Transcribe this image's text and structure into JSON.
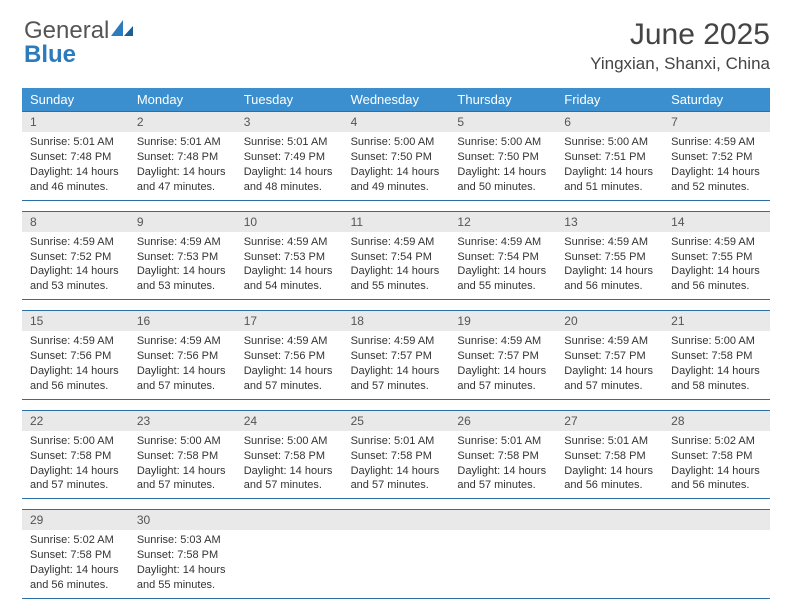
{
  "logo": {
    "text_general": "General",
    "text_blue": "Blue"
  },
  "title": "June 2025",
  "location": "Yingxian, Shanxi, China",
  "colors": {
    "header_bg": "#3b8fce",
    "header_text": "#ffffff",
    "daynum_bg": "#e9e9e9",
    "week_border": "#2b6fa5",
    "logo_blue": "#2b7bbd",
    "body_text": "#333333",
    "page_bg": "#ffffff"
  },
  "day_names": [
    "Sunday",
    "Monday",
    "Tuesday",
    "Wednesday",
    "Thursday",
    "Friday",
    "Saturday"
  ],
  "weeks": [
    [
      {
        "n": "1",
        "sr": "Sunrise: 5:01 AM",
        "ss": "Sunset: 7:48 PM",
        "dl": "Daylight: 14 hours and 46 minutes."
      },
      {
        "n": "2",
        "sr": "Sunrise: 5:01 AM",
        "ss": "Sunset: 7:48 PM",
        "dl": "Daylight: 14 hours and 47 minutes."
      },
      {
        "n": "3",
        "sr": "Sunrise: 5:01 AM",
        "ss": "Sunset: 7:49 PM",
        "dl": "Daylight: 14 hours and 48 minutes."
      },
      {
        "n": "4",
        "sr": "Sunrise: 5:00 AM",
        "ss": "Sunset: 7:50 PM",
        "dl": "Daylight: 14 hours and 49 minutes."
      },
      {
        "n": "5",
        "sr": "Sunrise: 5:00 AM",
        "ss": "Sunset: 7:50 PM",
        "dl": "Daylight: 14 hours and 50 minutes."
      },
      {
        "n": "6",
        "sr": "Sunrise: 5:00 AM",
        "ss": "Sunset: 7:51 PM",
        "dl": "Daylight: 14 hours and 51 minutes."
      },
      {
        "n": "7",
        "sr": "Sunrise: 4:59 AM",
        "ss": "Sunset: 7:52 PM",
        "dl": "Daylight: 14 hours and 52 minutes."
      }
    ],
    [
      {
        "n": "8",
        "sr": "Sunrise: 4:59 AM",
        "ss": "Sunset: 7:52 PM",
        "dl": "Daylight: 14 hours and 53 minutes."
      },
      {
        "n": "9",
        "sr": "Sunrise: 4:59 AM",
        "ss": "Sunset: 7:53 PM",
        "dl": "Daylight: 14 hours and 53 minutes."
      },
      {
        "n": "10",
        "sr": "Sunrise: 4:59 AM",
        "ss": "Sunset: 7:53 PM",
        "dl": "Daylight: 14 hours and 54 minutes."
      },
      {
        "n": "11",
        "sr": "Sunrise: 4:59 AM",
        "ss": "Sunset: 7:54 PM",
        "dl": "Daylight: 14 hours and 55 minutes."
      },
      {
        "n": "12",
        "sr": "Sunrise: 4:59 AM",
        "ss": "Sunset: 7:54 PM",
        "dl": "Daylight: 14 hours and 55 minutes."
      },
      {
        "n": "13",
        "sr": "Sunrise: 4:59 AM",
        "ss": "Sunset: 7:55 PM",
        "dl": "Daylight: 14 hours and 56 minutes."
      },
      {
        "n": "14",
        "sr": "Sunrise: 4:59 AM",
        "ss": "Sunset: 7:55 PM",
        "dl": "Daylight: 14 hours and 56 minutes."
      }
    ],
    [
      {
        "n": "15",
        "sr": "Sunrise: 4:59 AM",
        "ss": "Sunset: 7:56 PM",
        "dl": "Daylight: 14 hours and 56 minutes."
      },
      {
        "n": "16",
        "sr": "Sunrise: 4:59 AM",
        "ss": "Sunset: 7:56 PM",
        "dl": "Daylight: 14 hours and 57 minutes."
      },
      {
        "n": "17",
        "sr": "Sunrise: 4:59 AM",
        "ss": "Sunset: 7:56 PM",
        "dl": "Daylight: 14 hours and 57 minutes."
      },
      {
        "n": "18",
        "sr": "Sunrise: 4:59 AM",
        "ss": "Sunset: 7:57 PM",
        "dl": "Daylight: 14 hours and 57 minutes."
      },
      {
        "n": "19",
        "sr": "Sunrise: 4:59 AM",
        "ss": "Sunset: 7:57 PM",
        "dl": "Daylight: 14 hours and 57 minutes."
      },
      {
        "n": "20",
        "sr": "Sunrise: 4:59 AM",
        "ss": "Sunset: 7:57 PM",
        "dl": "Daylight: 14 hours and 57 minutes."
      },
      {
        "n": "21",
        "sr": "Sunrise: 5:00 AM",
        "ss": "Sunset: 7:58 PM",
        "dl": "Daylight: 14 hours and 58 minutes."
      }
    ],
    [
      {
        "n": "22",
        "sr": "Sunrise: 5:00 AM",
        "ss": "Sunset: 7:58 PM",
        "dl": "Daylight: 14 hours and 57 minutes."
      },
      {
        "n": "23",
        "sr": "Sunrise: 5:00 AM",
        "ss": "Sunset: 7:58 PM",
        "dl": "Daylight: 14 hours and 57 minutes."
      },
      {
        "n": "24",
        "sr": "Sunrise: 5:00 AM",
        "ss": "Sunset: 7:58 PM",
        "dl": "Daylight: 14 hours and 57 minutes."
      },
      {
        "n": "25",
        "sr": "Sunrise: 5:01 AM",
        "ss": "Sunset: 7:58 PM",
        "dl": "Daylight: 14 hours and 57 minutes."
      },
      {
        "n": "26",
        "sr": "Sunrise: 5:01 AM",
        "ss": "Sunset: 7:58 PM",
        "dl": "Daylight: 14 hours and 57 minutes."
      },
      {
        "n": "27",
        "sr": "Sunrise: 5:01 AM",
        "ss": "Sunset: 7:58 PM",
        "dl": "Daylight: 14 hours and 56 minutes."
      },
      {
        "n": "28",
        "sr": "Sunrise: 5:02 AM",
        "ss": "Sunset: 7:58 PM",
        "dl": "Daylight: 14 hours and 56 minutes."
      }
    ],
    [
      {
        "n": "29",
        "sr": "Sunrise: 5:02 AM",
        "ss": "Sunset: 7:58 PM",
        "dl": "Daylight: 14 hours and 56 minutes."
      },
      {
        "n": "30",
        "sr": "Sunrise: 5:03 AM",
        "ss": "Sunset: 7:58 PM",
        "dl": "Daylight: 14 hours and 55 minutes."
      },
      null,
      null,
      null,
      null,
      null
    ]
  ]
}
